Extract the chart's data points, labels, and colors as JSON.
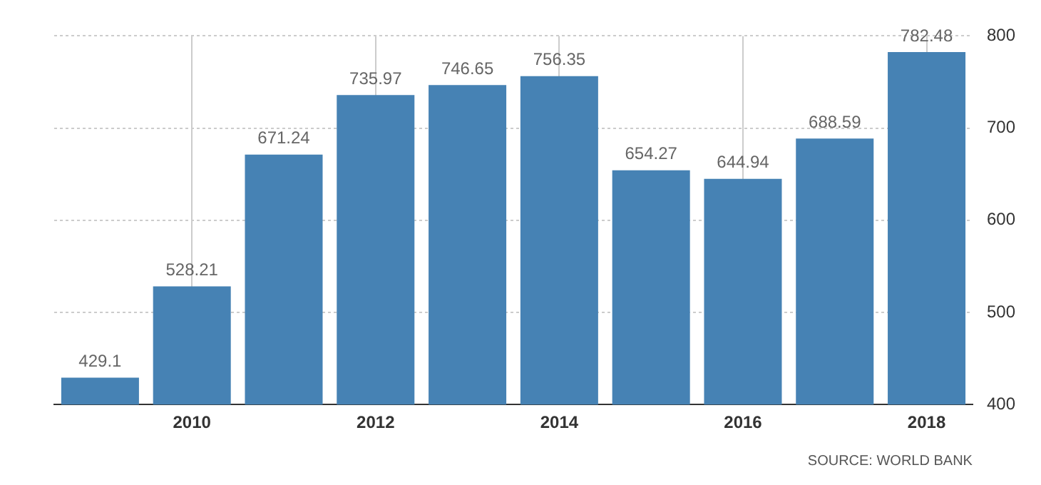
{
  "chart_data": {
    "type": "bar",
    "categories": [
      null,
      "2010",
      null,
      "2012",
      null,
      "2014",
      null,
      "2016",
      null,
      "2018"
    ],
    "values": [
      429.1,
      528.21,
      671.24,
      735.97,
      746.65,
      756.35,
      654.27,
      644.94,
      688.59,
      782.48
    ],
    "color": "#4682b4",
    "ylim": [
      400,
      800
    ],
    "yticks": [
      400,
      500,
      600,
      700,
      800
    ],
    "grid": true,
    "data_labels": true,
    "annotations": [
      "SOURCE: WORLD BANK"
    ]
  }
}
